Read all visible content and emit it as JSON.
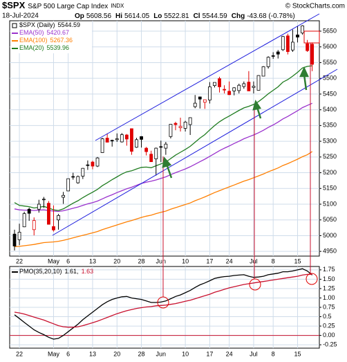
{
  "header": {
    "symbol": "$SPX",
    "name": "S&P 500 Large Cap Index",
    "exchange": "INDX",
    "copyright": "© StockCharts.com",
    "date": "18-Jul-2024",
    "fields": [
      {
        "label": "Op",
        "value": "5608.56"
      },
      {
        "label": "Hi",
        "value": "5614.05"
      },
      {
        "label": "Lo",
        "value": "5522.81"
      },
      {
        "label": "Cl",
        "value": "5544.59"
      },
      {
        "label": "Chg",
        "value": "-43.68 (-0.78%)"
      }
    ]
  },
  "chart_data": [
    {
      "type": "candlestick",
      "name": "$SPX (Daily)",
      "categories": [
        null,
        "22",
        null,
        null,
        null,
        null,
        null,
        null,
        "May",
        null,
        null,
        "6",
        null,
        null,
        null,
        null,
        "13",
        null,
        null,
        null,
        null,
        "20",
        null,
        null,
        null,
        null,
        "28",
        null,
        null,
        null,
        "Jun",
        null,
        null,
        null,
        null,
        "10",
        null,
        null,
        null,
        null,
        "17",
        null,
        null,
        null,
        "24",
        null,
        null,
        null,
        null,
        "Jul",
        null,
        null,
        null,
        "8",
        null,
        null,
        null,
        null,
        "15",
        null,
        null,
        null
      ],
      "open": [
        5005,
        4987,
        5028,
        5084,
        5019,
        5084,
        5114,
        5103,
        5029,
        5050,
        5122,
        5142,
        5188,
        5168,
        5189,
        5225,
        5234,
        5221,
        5264,
        5310,
        5303,
        5305,
        5298,
        5320,
        5340,
        5281,
        5315,
        5278,
        5259,
        5244,
        5283,
        5278,
        5315,
        5357,
        5343,
        5341,
        5353,
        5410,
        5441,
        5424,
        5431,
        5477,
        5499,
        5465,
        5459,
        5460,
        5461,
        5474,
        5488,
        5471,
        5462,
        5507,
        5537,
        5572,
        5584,
        5591,
        5635,
        5590,
        5638,
        5644,
        5610,
        5608.56
      ],
      "high": [
        5019,
        5038,
        5076,
        5089,
        5058,
        5114,
        5123,
        5110,
        5096,
        5069,
        5139,
        5181,
        5200,
        5191,
        5215,
        5239,
        5238,
        5250,
        5311,
        5325,
        5305,
        5325,
        5326,
        5323,
        5341,
        5311,
        5316,
        5282,
        5270,
        5280,
        5302,
        5298,
        5354,
        5362,
        5375,
        5365,
        5376,
        5447,
        5442,
        5432,
        5488,
        5487,
        5505,
        5478,
        5490,
        5472,
        5483,
        5490,
        5523,
        5490,
        5510,
        5539,
        5570,
        5583,
        5590,
        5635,
        5642,
        5655,
        5666,
        5669,
        5622,
        5614.05
      ],
      "low": [
        4953,
        4970,
        5027,
        5047,
        5001,
        5073,
        5088,
        5035,
        5013,
        5019,
        5101,
        5142,
        5178,
        5165,
        5180,
        5209,
        5211,
        5218,
        5263,
        5297,
        5283,
        5298,
        5296,
        5286,
        5257,
        5279,
        5280,
        5255,
        5235,
        5191,
        5234,
        5257,
        5309,
        5335,
        5331,
        5331,
        5320,
        5405,
        5404,
        5403,
        5420,
        5471,
        5455,
        5452,
        5447,
        5446,
        5452,
        5467,
        5460,
        5452,
        5462,
        5507,
        5531,
        5562,
        5563,
        5587,
        5576,
        5584,
        5614,
        5639,
        5584,
        5522.81
      ],
      "close": [
        4967,
        5011,
        5070,
        5071,
        5048,
        5100,
        5116,
        5036,
        5018,
        5064,
        5128,
        5181,
        5187,
        5188,
        5214,
        5223,
        5221,
        5247,
        5308,
        5297,
        5303,
        5308,
        5321,
        5307,
        5268,
        5305,
        5306,
        5267,
        5235,
        5278,
        5283,
        5291,
        5354,
        5353,
        5347,
        5361,
        5375,
        5421,
        5434,
        5432,
        5473,
        5487,
        5473,
        5465,
        5448,
        5470,
        5478,
        5483,
        5460,
        5475,
        5509,
        5537,
        5567,
        5572,
        5577,
        5633,
        5585,
        5615,
        5631,
        5667,
        5588,
        5544.59
      ],
      "up_color": "#000000",
      "down_color": "#e00000",
      "series": [
        {
          "name": "EMA(50)",
          "color": "#9a32cd",
          "values": [
            5085,
            5082,
            5081,
            5081,
            5080,
            5081,
            5082,
            5080,
            5078,
            5077,
            5079,
            5083,
            5087,
            5091,
            5096,
            5101,
            5105,
            5110,
            5117,
            5124,
            5130,
            5137,
            5143,
            5149,
            5154,
            5160,
            5166,
            5170,
            5173,
            5177,
            5182,
            5187,
            5194,
            5200,
            5206,
            5212,
            5219,
            5227,
            5235,
            5243,
            5252,
            5261,
            5270,
            5278,
            5285,
            5293,
            5300,
            5308,
            5314,
            5320,
            5327,
            5335,
            5344,
            5352,
            5361,
            5371,
            5379,
            5388,
            5397,
            5407,
            5414,
            5420.67
          ]
        },
        {
          "name": "EMA(100)",
          "color": "#ff7f00",
          "values": [
            4965,
            4966,
            4968,
            4970,
            4972,
            4975,
            4978,
            4979,
            4980,
            4982,
            4985,
            4989,
            4993,
            4997,
            5001,
            5005,
            5009,
            5013,
            5019,
            5024,
            5029,
            5034,
            5039,
            5044,
            5048,
            5053,
            5058,
            5062,
            5065,
            5070,
            5074,
            5078,
            5084,
            5089,
            5094,
            5099,
            5104,
            5111,
            5117,
            5123,
            5130,
            5137,
            5143,
            5149,
            5155,
            5161,
            5167,
            5173,
            5178,
            5184,
            5190,
            5196,
            5203,
            5209,
            5215,
            5223,
            5229,
            5236,
            5243,
            5251,
            5257,
            5267.36
          ]
        },
        {
          "name": "EMA(20)",
          "color": "#1e7b1e",
          "values": [
            5105,
            5096,
            5094,
            5092,
            5088,
            5090,
            5093,
            5088,
            5082,
            5080,
            5085,
            5094,
            5103,
            5111,
            5121,
            5130,
            5138,
            5147,
            5159,
            5168,
            5178,
            5187,
            5196,
            5203,
            5206,
            5212,
            5217,
            5218,
            5216,
            5222,
            5228,
            5234,
            5245,
            5256,
            5265,
            5274,
            5284,
            5297,
            5310,
            5321,
            5336,
            5350,
            5362,
            5372,
            5380,
            5389,
            5398,
            5406,
            5411,
            5417,
            5426,
            5438,
            5451,
            5462,
            5473,
            5488,
            5496,
            5507,
            5519,
            5533,
            5538,
            5539.96
          ]
        }
      ],
      "ylim": [
        4935,
        5683
      ],
      "yticks": [
        4950,
        5000,
        5050,
        5100,
        5150,
        5200,
        5250,
        5300,
        5350,
        5400,
        5450,
        5500,
        5550,
        5600,
        5650
      ],
      "grid": true
    },
    {
      "type": "line",
      "legend_title": "PMO(35,20,10)",
      "legend_values": [
        "1.61,",
        "1.63"
      ],
      "categories": [
        null,
        "22",
        null,
        null,
        null,
        null,
        null,
        null,
        "May",
        null,
        null,
        "6",
        null,
        null,
        null,
        null,
        "13",
        null,
        null,
        null,
        null,
        "20",
        null,
        null,
        null,
        null,
        "28",
        null,
        null,
        null,
        "Jun",
        null,
        null,
        null,
        null,
        "10",
        null,
        null,
        null,
        null,
        "17",
        null,
        null,
        null,
        "24",
        null,
        null,
        null,
        null,
        "Jul",
        null,
        null,
        null,
        "8",
        null,
        null,
        null,
        null,
        "15",
        null,
        null,
        null
      ],
      "series": [
        {
          "name": "PMO",
          "color": "#000000",
          "values": [
            0.55,
            0.45,
            0.35,
            0.25,
            0.15,
            0.08,
            0.02,
            -0.05,
            -0.1,
            -0.08,
            0,
            0.1,
            0.2,
            0.3,
            0.42,
            0.52,
            0.62,
            0.72,
            0.82,
            0.9,
            0.96,
            1,
            1.03,
            1.04,
            1,
            0.98,
            0.96,
            0.92,
            0.88,
            0.88,
            0.89,
            0.92,
            0.98,
            1.04,
            1.08,
            1.14,
            1.2,
            1.28,
            1.35,
            1.4,
            1.46,
            1.52,
            1.55,
            1.57,
            1.58,
            1.6,
            1.61,
            1.62,
            1.58,
            1.55,
            1.56,
            1.58,
            1.62,
            1.64,
            1.66,
            1.7,
            1.7,
            1.72,
            1.75,
            1.78,
            1.72,
            1.61
          ]
        },
        {
          "name": "Signal",
          "color": "#c8102e",
          "values": [
            0.62,
            0.6,
            0.57,
            0.53,
            0.49,
            0.45,
            0.41,
            0.36,
            0.31,
            0.26,
            0.23,
            0.22,
            0.22,
            0.23,
            0.26,
            0.3,
            0.34,
            0.38,
            0.43,
            0.48,
            0.53,
            0.58,
            0.62,
            0.66,
            0.69,
            0.72,
            0.74,
            0.76,
            0.77,
            0.79,
            0.8,
            0.81,
            0.83,
            0.85,
            0.88,
            0.91,
            0.94,
            0.98,
            1.02,
            1.06,
            1.1,
            1.15,
            1.19,
            1.23,
            1.27,
            1.3,
            1.33,
            1.36,
            1.38,
            1.4,
            1.42,
            1.44,
            1.46,
            1.48,
            1.5,
            1.52,
            1.54,
            1.56,
            1.58,
            1.61,
            1.63,
            1.63
          ]
        }
      ],
      "reference_line": 0,
      "reference_color": "#c8102e",
      "ylim": [
        -0.34,
        1.84
      ],
      "yticks": [
        -0.25,
        {
          "value": 0,
          "label": "0.00"
        },
        0.25,
        0.5,
        0.75,
        {
          "value": 1,
          "label": "1.00"
        },
        1.25,
        {
          "value": 1.5,
          "label": "1.50"
        },
        1.75
      ],
      "grid": true
    }
  ]
}
